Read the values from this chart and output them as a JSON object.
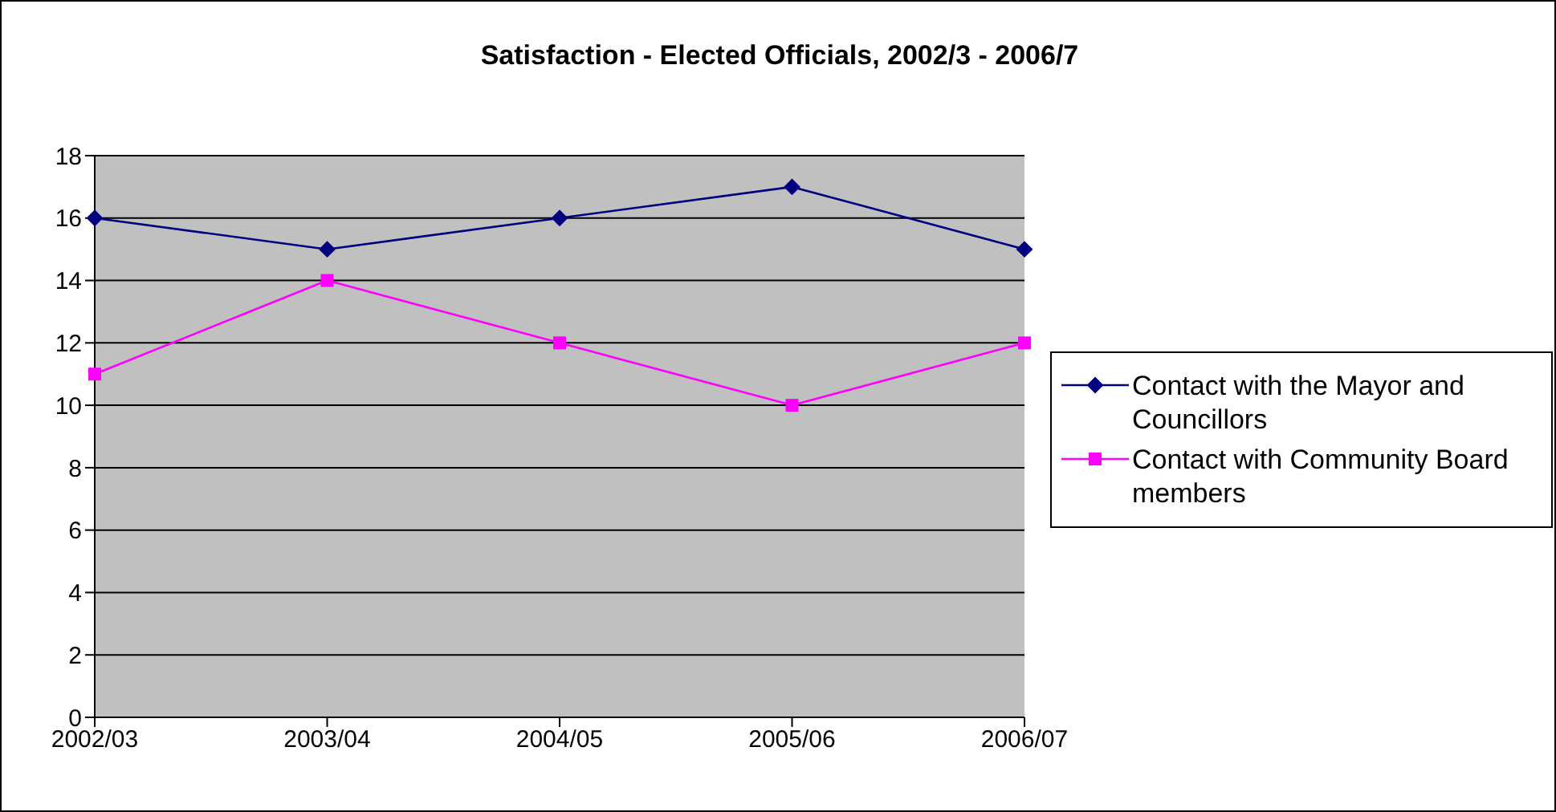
{
  "chart_data": {
    "type": "line",
    "title": "Satisfaction - Elected Officials, 2002/3 - 2006/7",
    "categories": [
      "2002/03",
      "2003/04",
      "2004/05",
      "2005/06",
      "2006/07"
    ],
    "series": [
      {
        "name": "Contact with the Mayor and Councillors",
        "color": "#000080",
        "marker": "diamond",
        "values": [
          16,
          15,
          16,
          17,
          15
        ]
      },
      {
        "name": "Contact with Community Board members",
        "color": "#ff00ff",
        "marker": "square",
        "values": [
          11,
          14,
          12,
          10,
          12
        ]
      }
    ],
    "ylim": [
      0,
      18
    ],
    "yticks": [
      0,
      2,
      4,
      6,
      8,
      10,
      12,
      14,
      16,
      18
    ],
    "grid": "y",
    "legend": "right"
  }
}
